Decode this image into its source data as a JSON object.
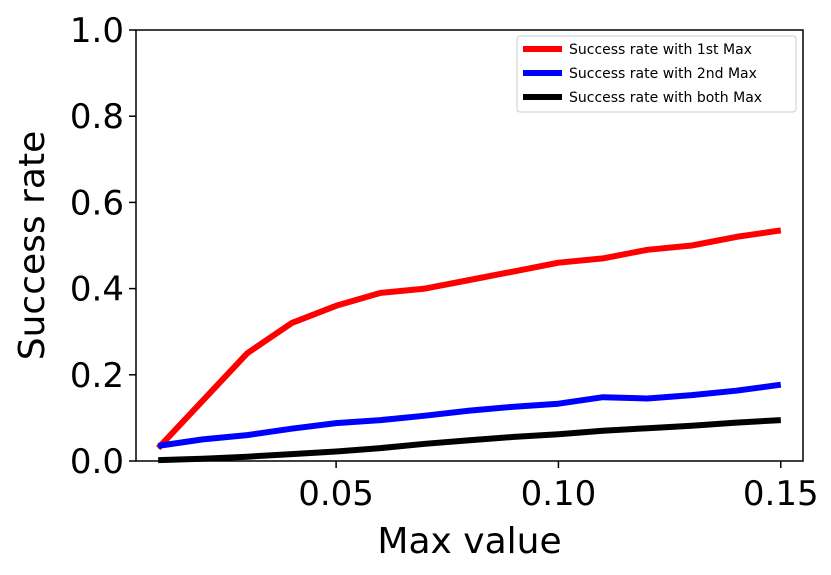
{
  "chart_data": {
    "type": "line",
    "title": "",
    "xlabel": "Max value",
    "ylabel": "Success rate",
    "xlim": [
      0.005,
      0.155
    ],
    "ylim": [
      0.0,
      1.0
    ],
    "x_ticks": [
      0.05,
      0.1,
      0.15
    ],
    "x_tick_labels": [
      "0.05",
      "0.10",
      "0.15"
    ],
    "y_ticks": [
      0.0,
      0.2,
      0.4,
      0.6,
      0.8,
      1.0
    ],
    "y_tick_labels": [
      "0.0",
      "0.2",
      "0.4",
      "0.6",
      "0.8",
      "1.0"
    ],
    "grid": false,
    "legend_position": "top-right",
    "x": [
      0.01,
      0.02,
      0.03,
      0.04,
      0.05,
      0.06,
      0.07,
      0.08,
      0.09,
      0.1,
      0.11,
      0.12,
      0.13,
      0.14,
      0.15
    ],
    "series": [
      {
        "name": "Success rate with 1st Max",
        "color": "#ff0000",
        "values": [
          0.03,
          0.14,
          0.25,
          0.32,
          0.36,
          0.39,
          0.4,
          0.42,
          0.44,
          0.46,
          0.47,
          0.49,
          0.5,
          0.52,
          0.535
        ]
      },
      {
        "name": "Success rate with 2nd Max",
        "color": "#0000ff",
        "values": [
          0.035,
          0.05,
          0.06,
          0.075,
          0.088,
          0.095,
          0.105,
          0.117,
          0.126,
          0.133,
          0.148,
          0.145,
          0.153,
          0.163,
          0.177
        ]
      },
      {
        "name": "Success rate with both Max",
        "color": "#000000",
        "values": [
          0.002,
          0.005,
          0.01,
          0.016,
          0.022,
          0.03,
          0.04,
          0.048,
          0.056,
          0.062,
          0.07,
          0.076,
          0.082,
          0.089,
          0.095
        ]
      }
    ]
  }
}
